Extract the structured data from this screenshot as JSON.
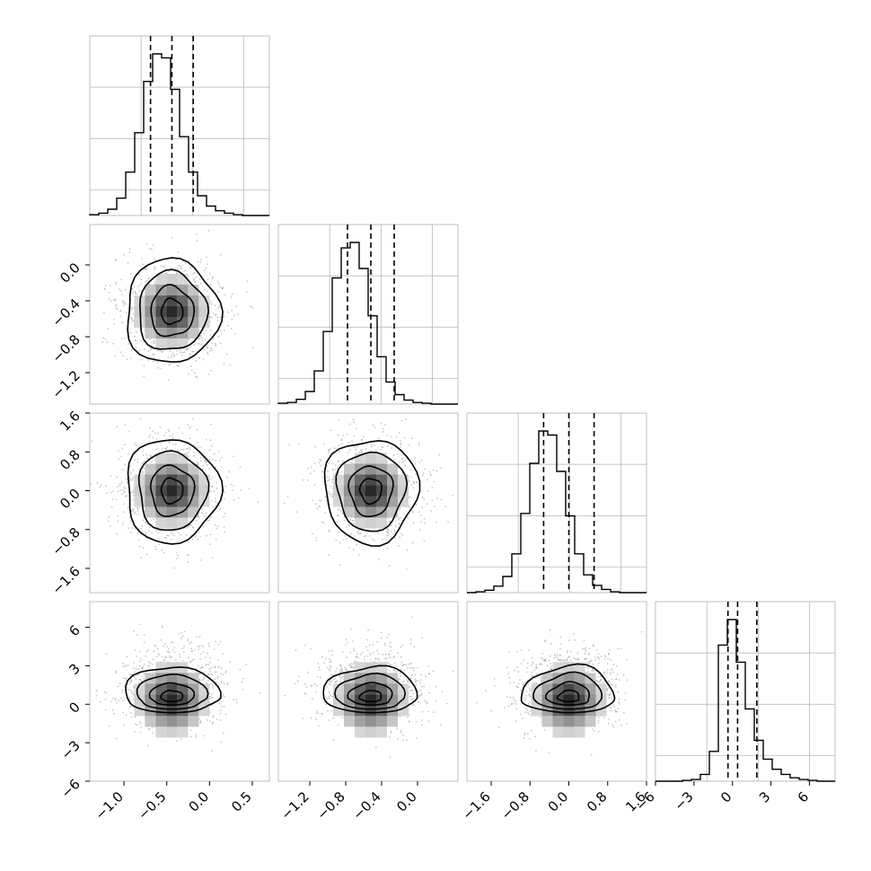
{
  "chart_data": {
    "type": "corner",
    "variables": 4,
    "grid": true,
    "colors": {
      "line": "#000000",
      "grid": "#b0b0b0",
      "points": "#9a9a9a"
    },
    "ranges": [
      [
        -1.4,
        0.7
      ],
      [
        -1.55,
        0.45
      ],
      [
        -2.1,
        1.6
      ],
      [
        -6,
        8
      ]
    ],
    "quantiles": [
      [
        -0.69,
        -0.44,
        -0.19
      ],
      [
        -0.78,
        -0.52,
        -0.26
      ],
      [
        -0.52,
        0.0,
        0.52
      ],
      [
        -0.35,
        0.4,
        1.9
      ]
    ],
    "x_ticks": [
      {
        "values": [
          -1.0,
          -0.5,
          0.0,
          0.5
        ],
        "labels": [
          "−1.0",
          "−0.5",
          "0.0",
          "0.5"
        ]
      },
      {
        "values": [
          -1.2,
          -0.8,
          -0.4,
          0.0
        ],
        "labels": [
          "−1.2",
          "−0.8",
          "−0.4",
          "0.0"
        ]
      },
      {
        "values": [
          -1.6,
          -0.8,
          0.0,
          0.8,
          1.6
        ],
        "labels": [
          "−1.6",
          "−0.8",
          "0.0",
          "0.8",
          "1.6"
        ]
      },
      {
        "values": [
          -6,
          -3,
          0,
          3,
          6
        ],
        "labels": [
          "−6",
          "−3",
          "0",
          "3",
          "6"
        ]
      }
    ],
    "y_ticks": [
      null,
      {
        "values": [
          0.0,
          -0.4,
          -0.8,
          -1.2
        ],
        "labels": [
          "0.0",
          "−0.4",
          "−0.8",
          "−1.2"
        ]
      },
      {
        "values": [
          1.6,
          0.8,
          0.0,
          -0.8,
          -1.6
        ],
        "labels": [
          "1.6",
          "0.8",
          "0.0",
          "−0.8",
          "−1.6"
        ]
      },
      {
        "values": [
          6,
          3,
          0,
          -3,
          -6
        ],
        "labels": [
          "6",
          "3",
          "0",
          "−3",
          "−6"
        ]
      }
    ],
    "histograms": [
      [
        1,
        3,
        8,
        22,
        55,
        105,
        170,
        205,
        200,
        160,
        100,
        55,
        25,
        12,
        6,
        3,
        1,
        0,
        0,
        0
      ],
      [
        1,
        2,
        6,
        16,
        42,
        92,
        160,
        198,
        205,
        172,
        112,
        60,
        28,
        12,
        5,
        2,
        1,
        0,
        0,
        0
      ],
      [
        0,
        1,
        3,
        8,
        20,
        48,
        98,
        160,
        200,
        195,
        150,
        95,
        48,
        22,
        9,
        4,
        1,
        0,
        0,
        0
      ],
      [
        0,
        0,
        0,
        1,
        2,
        8,
        35,
        160,
        190,
        140,
        85,
        48,
        26,
        14,
        8,
        4,
        2,
        1,
        0,
        0
      ]
    ]
  }
}
